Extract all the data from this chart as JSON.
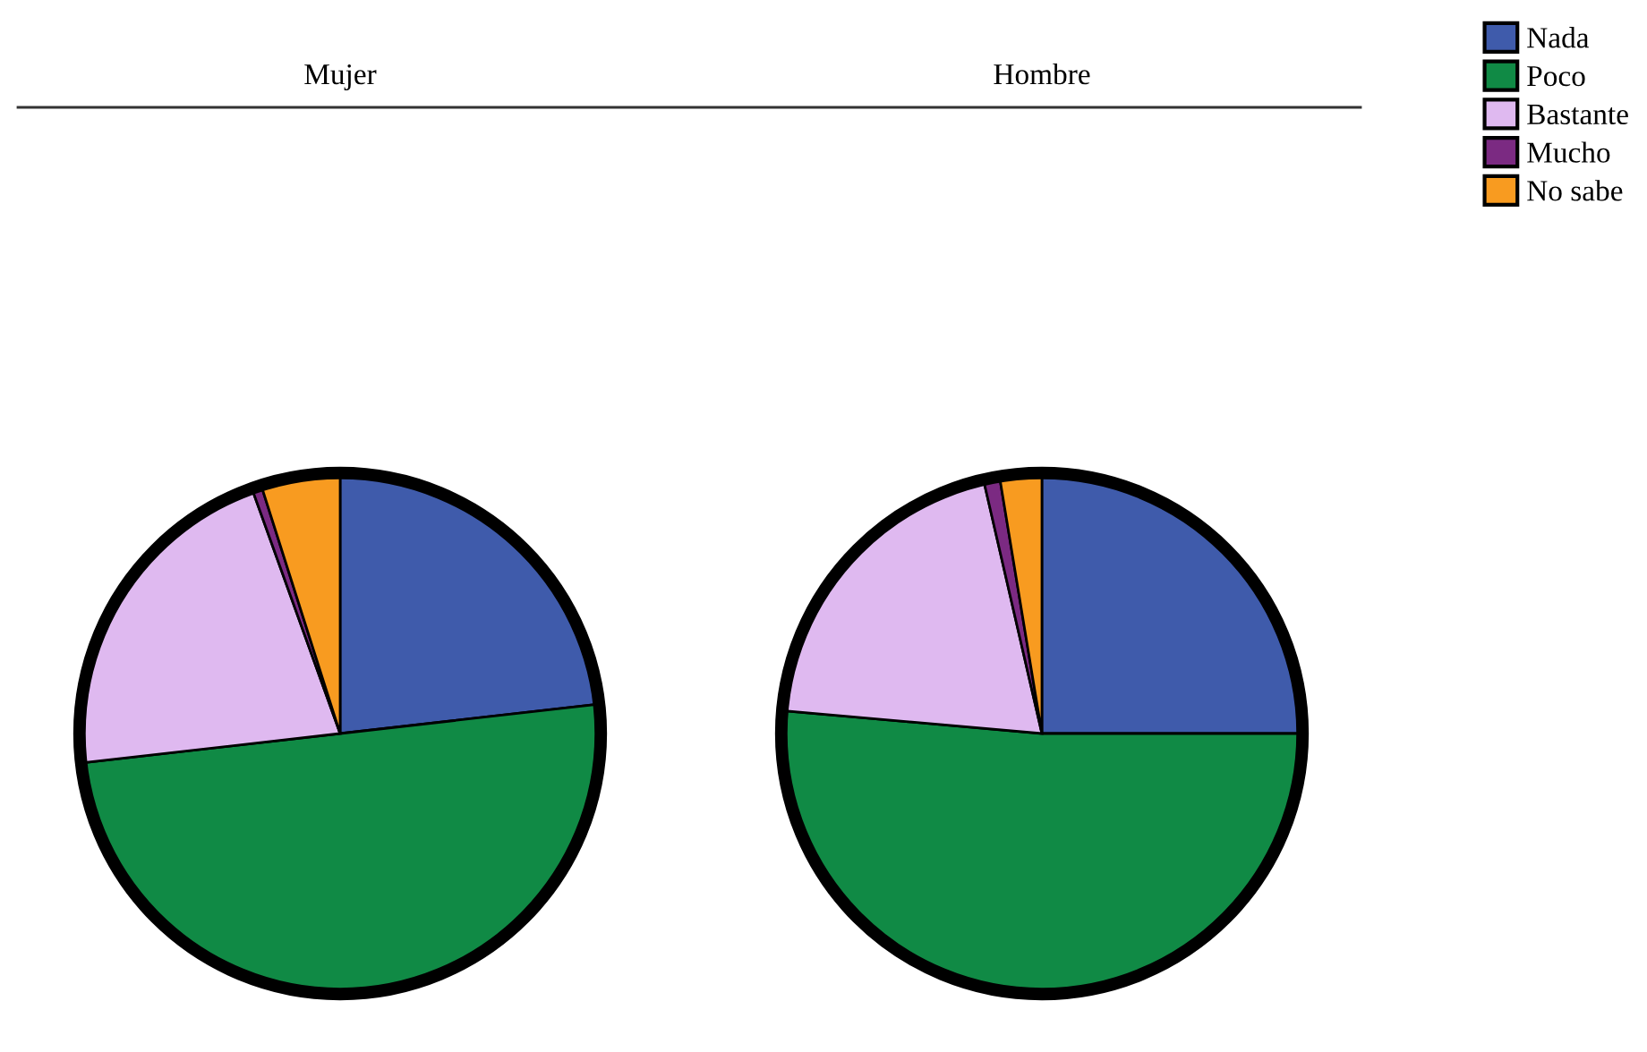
{
  "chart_data": [
    {
      "type": "pie",
      "title": "Mujer",
      "categories": [
        "Nada",
        "Poco",
        "Bastante",
        "Mucho",
        "No sabe"
      ],
      "values": [
        23.2,
        50,
        21.3,
        0.6,
        4.9
      ],
      "colors": [
        "#3f5bab",
        "#108a45",
        "#dfb9f0",
        "#7b2a82",
        "#f89b20"
      ],
      "legend": "top right"
    },
    {
      "type": "pie",
      "title": "Hombre",
      "categories": [
        null,
        null,
        null,
        null,
        null
      ],
      "values": [
        25,
        51.4,
        20,
        1.0,
        2.6
      ],
      "colors": [
        "#3f5bab",
        "#108a45",
        "#dfb9f0",
        "#7b2a82",
        "#f89b20"
      ]
    }
  ]
}
